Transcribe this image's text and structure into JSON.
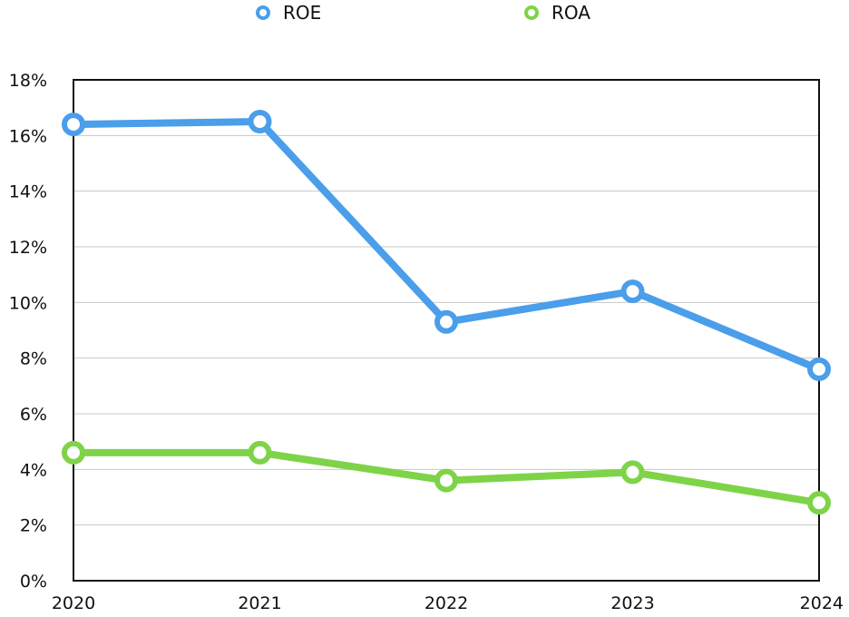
{
  "chart_data": {
    "type": "line",
    "title": "",
    "xlabel": "",
    "ylabel": "",
    "categories": [
      "2020",
      "2021",
      "2022",
      "2023",
      "2024"
    ],
    "ylim": [
      0,
      18
    ],
    "yticks": [
      0,
      2,
      4,
      6,
      8,
      10,
      12,
      14,
      16,
      18
    ],
    "ytick_labels": [
      "0%",
      "2%",
      "4%",
      "6%",
      "8%",
      "10%",
      "12%",
      "14%",
      "16%",
      "18%"
    ],
    "grid": true,
    "legend_position": "top-center",
    "series": [
      {
        "name": "ROE",
        "color": "#4a9eea",
        "values": [
          16.4,
          16.5,
          9.3,
          10.4,
          7.6
        ]
      },
      {
        "name": "ROA",
        "color": "#7ed348",
        "values": [
          4.6,
          4.6,
          3.6,
          3.9,
          2.8
        ]
      }
    ]
  }
}
